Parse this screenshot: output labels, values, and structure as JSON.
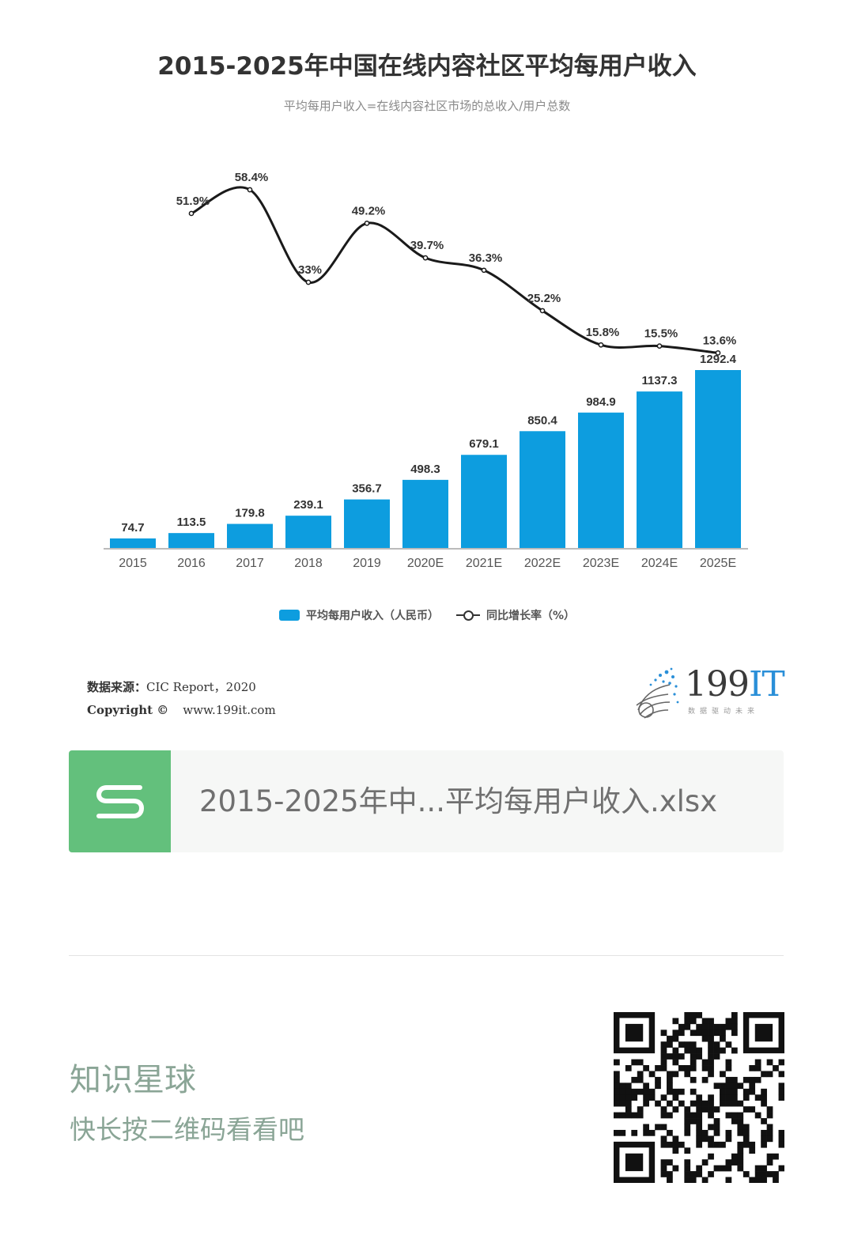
{
  "chart_data": {
    "type": "bar",
    "title": "2015-2025年中国在线内容社区平均每用户收入",
    "subtitle": "平均每用户收入=在线内容社区市场的总收入/用户总数",
    "categories": [
      "2015",
      "2016",
      "2017",
      "2018",
      "2019",
      "2020E",
      "2021E",
      "2022E",
      "2023E",
      "2024E",
      "2025E"
    ],
    "series": [
      {
        "name": "平均每用户收入（人民币）",
        "type": "bar",
        "color": "#0d9ddf",
        "values": [
          74.7,
          113.5,
          179.8,
          239.1,
          356.7,
          498.3,
          679.1,
          850.4,
          984.9,
          1137.3,
          1292.4
        ],
        "labels": [
          "74.7",
          "113.5",
          "179.8",
          "239.1",
          "356.7",
          "498.3",
          "679.1",
          "850.4",
          "984.9",
          "1137.3",
          "1292.4"
        ]
      },
      {
        "name": "同比增长率（%）",
        "type": "line",
        "color": "#1a1a1a",
        "values": [
          null,
          51.9,
          58.4,
          33,
          49.2,
          39.7,
          36.3,
          25.2,
          15.8,
          15.5,
          13.6
        ],
        "labels": [
          "",
          "51.9%",
          "58.4%",
          "33%",
          "49.2%",
          "39.7%",
          "36.3%",
          "25.2%",
          "15.8%",
          "15.5%",
          "13.6%"
        ]
      }
    ],
    "legend": "bottom-center",
    "grid": false
  },
  "source": {
    "label": "数据来源：",
    "value": "CIC Report，2020",
    "copyright_label": "Copyright ©",
    "website": "www.199it.com"
  },
  "brand": {
    "name_digits": "199",
    "name_letters": "IT",
    "tagline": "数据驱动未来"
  },
  "file_card": {
    "icon_letter": "S",
    "file_name": "2015-2025年中...平均每用户收入.xlsx"
  },
  "promo": {
    "title": "知识星球",
    "subtitle": "快长按二维码看看吧"
  }
}
